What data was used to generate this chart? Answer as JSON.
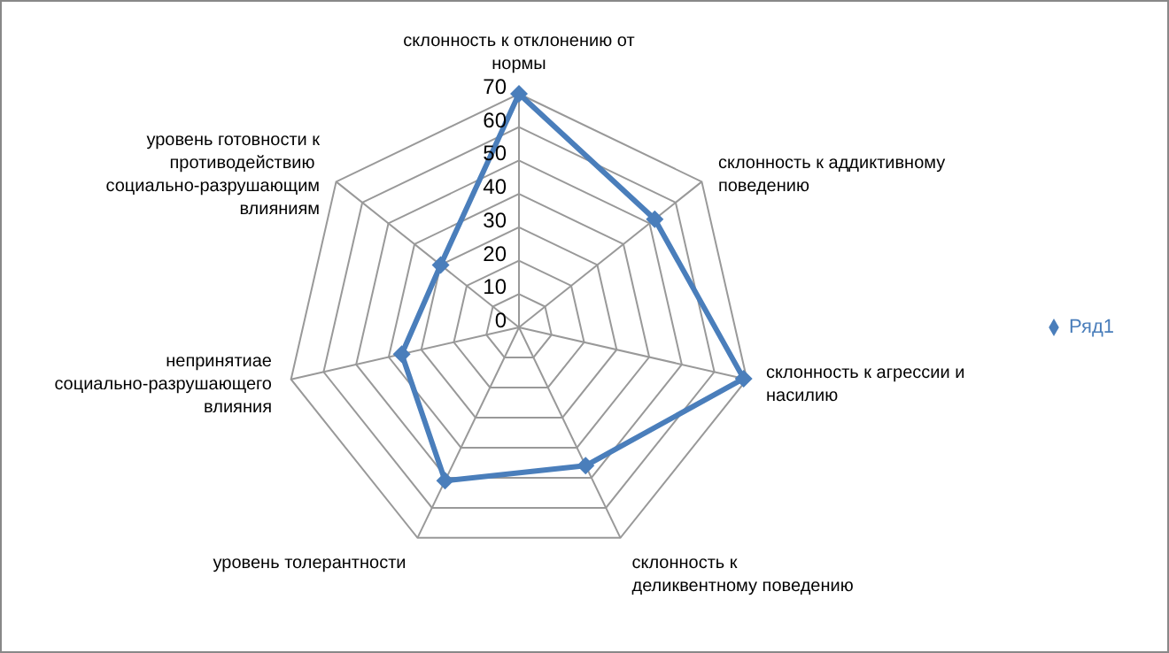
{
  "chart_data": {
    "type": "radar",
    "categories": [
      "склонность к отклонению от нормы",
      "склонность к аддиктивному поведению",
      "склонность к агрессии и насилию",
      "склонность к  деликвентному поведению",
      "уровень толерантности",
      "непринятиае социально-разрушающего влияния",
      "уровень готовности к противодействию  социально-разрушающим влияниям"
    ],
    "series": [
      {
        "name": "Ряд1",
        "color": "#4a7ebb",
        "values": [
          70,
          52,
          69,
          46,
          51,
          36,
          30
        ]
      }
    ],
    "ylim": [
      0,
      70
    ],
    "yticks": [
      0,
      10,
      20,
      30,
      40,
      50,
      60,
      70
    ],
    "grid": true,
    "legend": "right",
    "marker": "diamond"
  }
}
